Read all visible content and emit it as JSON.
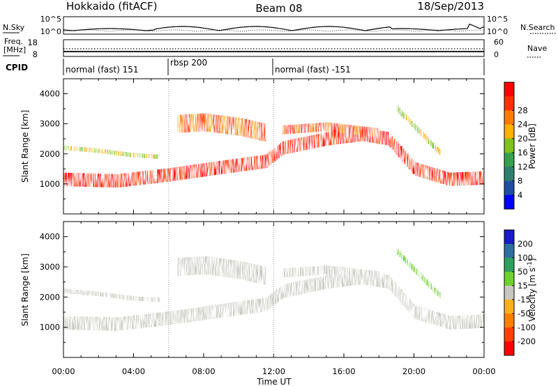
{
  "header": {
    "radar": "Hokkaido (fitACF)",
    "beam": "Beam 08",
    "date": "18/Sep/2013"
  },
  "noise_panel": {
    "left_label": "N.Sky",
    "right_label": "N.Search",
    "left_ticks": [
      "10^5",
      "10^0"
    ],
    "right_ticks": [
      "10^5",
      "10^0"
    ]
  },
  "freq_panel": {
    "left_label_1": "Freq.",
    "left_label_2": "[MHz]",
    "right_label": "Nave",
    "left_ticks": [
      "18",
      "8"
    ],
    "right_ticks": [
      "60",
      "0"
    ]
  },
  "cpid_panel": {
    "label": "CPID",
    "segments": [
      {
        "label": "normal (fast) 151",
        "start_hour": 0
      },
      {
        "label": "rbsp 200",
        "start_hour": 6
      },
      {
        "label": "normal (fast) -151",
        "start_hour": 12
      }
    ]
  },
  "colors": {
    "power_scale": [
      "#0000ff",
      "#1f4f9f",
      "#2f7f6f",
      "#3a9e4f",
      "#7fc21f",
      "#ffb000",
      "#ff7a00",
      "#ff3000",
      "#ff0000"
    ],
    "velocity_scale": [
      "#1a1ac8",
      "#2f6f9f",
      "#2f9f5f",
      "#6fd030",
      "#c8c8c0",
      "#ffb020",
      "#ff8000",
      "#ff4000",
      "#ff0000"
    ]
  },
  "chart_data": [
    {
      "type": "heatmap",
      "title": "Power",
      "ylabel": "Slant Range [km]",
      "xlabel": "",
      "x_range_hours": [
        0,
        24
      ],
      "ylim": [
        0,
        4500
      ],
      "yticks": [
        "1000",
        "2000",
        "3000",
        "4000"
      ],
      "colorbar": {
        "label": "Power [dB]",
        "ticks": [
          "4",
          "8",
          "12",
          "16",
          "20",
          "24",
          "28"
        ],
        "range": [
          0,
          32
        ]
      },
      "bands": [
        {
          "name": "main",
          "range_km_at_hour": [
            [
              0,
              1150
            ],
            [
              3,
              1100
            ],
            [
              6,
              1300
            ],
            [
              9,
              1550
            ],
            [
              11.5,
              1750
            ],
            [
              12.5,
              2200
            ],
            [
              15,
              2500
            ],
            [
              17,
              2650
            ],
            [
              18.5,
              2500
            ],
            [
              20,
              1500
            ],
            [
              22,
              1150
            ],
            [
              24,
              1200
            ]
          ],
          "thickness_km": 450,
          "power_db": 28
        },
        {
          "name": "upper-evening",
          "range_km_at_hour": [
            [
              6.5,
              3000
            ],
            [
              8,
              3050
            ],
            [
              10,
              2900
            ],
            [
              11.5,
              2700
            ]
          ],
          "thickness_km": 600,
          "power_db": 24
        },
        {
          "name": "upper-afternoon",
          "range_km_at_hour": [
            [
              12.5,
              2800
            ],
            [
              15,
              2900
            ],
            [
              18,
              2700
            ]
          ],
          "thickness_km": 300,
          "power_db": 26
        },
        {
          "name": "dusk-far",
          "range_km_at_hour": [
            [
              19,
              3500
            ],
            [
              20.5,
              2600
            ],
            [
              21.5,
              2000
            ]
          ],
          "thickness_km": 200,
          "power_db": 18
        },
        {
          "name": "morning-upper",
          "range_km_at_hour": [
            [
              0,
              2200
            ],
            [
              2,
              2100
            ],
            [
              4,
              1950
            ],
            [
              5.5,
              1900
            ]
          ],
          "thickness_km": 150,
          "power_db": 18
        }
      ]
    },
    {
      "type": "heatmap",
      "title": "Velocity",
      "ylabel": "Slant Range [km]",
      "xlabel": "Time UT",
      "x_range_hours": [
        0,
        24
      ],
      "xticks": [
        "00:00",
        "04:00",
        "08:00",
        "12:00",
        "16:00",
        "20:00",
        "00:00"
      ],
      "ylim": [
        0,
        4500
      ],
      "yticks": [
        "1000",
        "2000",
        "3000",
        "4000"
      ],
      "colorbar": {
        "label": "Velocity [m s^-1]",
        "ticks": [
          "200",
          "100",
          "50",
          "15",
          "-15",
          "-50",
          "-100",
          "-200"
        ],
        "range": [
          -250,
          250
        ]
      },
      "bands": [
        {
          "name": "main",
          "range_km_at_hour": [
            [
              0,
              1150
            ],
            [
              3,
              1100
            ],
            [
              6,
              1300
            ],
            [
              9,
              1550
            ],
            [
              11.5,
              1750
            ],
            [
              12.5,
              2200
            ],
            [
              15,
              2500
            ],
            [
              17,
              2650
            ],
            [
              18.5,
              2500
            ],
            [
              20,
              1500
            ],
            [
              22,
              1150
            ],
            [
              24,
              1200
            ]
          ],
          "thickness_km": 450,
          "velocity_ms": 0
        },
        {
          "name": "upper-evening",
          "range_km_at_hour": [
            [
              6.5,
              3000
            ],
            [
              8,
              3050
            ],
            [
              10,
              2900
            ],
            [
              11.5,
              2700
            ]
          ],
          "thickness_km": 600,
          "velocity_ms": 0
        },
        {
          "name": "upper-afternoon",
          "range_km_at_hour": [
            [
              12.5,
              2800
            ],
            [
              15,
              2900
            ],
            [
              18,
              2700
            ]
          ],
          "thickness_km": 300,
          "velocity_ms": 0
        },
        {
          "name": "dusk-far",
          "range_km_at_hour": [
            [
              19,
              3500
            ],
            [
              20.5,
              2600
            ],
            [
              21.5,
              2000
            ]
          ],
          "thickness_km": 200,
          "velocity_ms": 40
        },
        {
          "name": "morning-upper",
          "range_km_at_hour": [
            [
              0,
              2200
            ],
            [
              2,
              2100
            ],
            [
              4,
              1950
            ],
            [
              5.5,
              1900
            ]
          ],
          "thickness_km": 150,
          "velocity_ms": 0
        }
      ]
    }
  ]
}
